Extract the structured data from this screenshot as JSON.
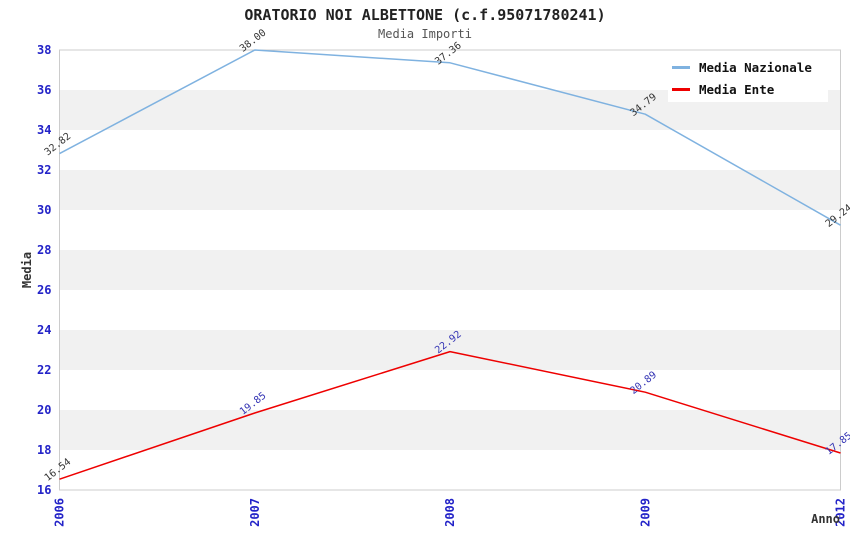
{
  "chart_data": {
    "type": "line",
    "title": "ORATORIO NOI ALBETTONE (c.f.95071780241)",
    "subtitle": "Media Importi",
    "xlabel": "Anno",
    "ylabel": "Media",
    "categories": [
      "2006",
      "2007",
      "2008",
      "2009",
      "2012"
    ],
    "ylim": [
      16,
      38
    ],
    "ytick_step": 2,
    "yticks": [
      16,
      18,
      20,
      22,
      24,
      26,
      28,
      30,
      32,
      34,
      36,
      38
    ],
    "grid": "alternating-horizontal-bands",
    "legend_position": "top-right",
    "series": [
      {
        "name": "Media Nazionale",
        "color": "#7fb2e0",
        "values": [
          32.82,
          38.0,
          37.36,
          34.79,
          29.24
        ],
        "point_labels": [
          "32.82",
          "38.00",
          "37.36",
          "34.79",
          "29.24"
        ],
        "point_label_colors": [
          "#333333",
          "#333333",
          "#333333",
          "#333333",
          "#333333"
        ]
      },
      {
        "name": "Media Ente",
        "color": "#ee0000",
        "values": [
          16.54,
          19.85,
          22.92,
          20.89,
          17.85
        ],
        "point_labels": [
          "16.54",
          "19.85",
          "22.92",
          "20.89",
          "17.85"
        ],
        "point_label_colors": [
          "#333333",
          "#3333b4",
          "#3333b4",
          "#3333b4",
          "#3333b4"
        ]
      }
    ],
    "colors": {
      "tick_label": "#2323c8",
      "band": "#f1f1f1",
      "plot_border": "#cccccc",
      "title": "#222222",
      "subtitle": "#555555",
      "axis_label": "#333333"
    }
  }
}
